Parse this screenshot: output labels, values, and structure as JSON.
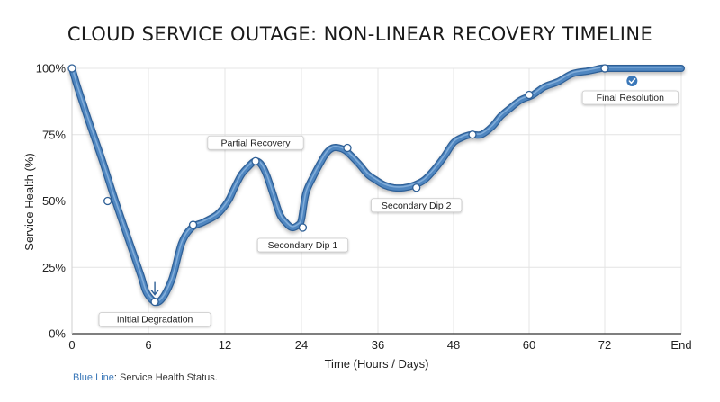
{
  "title": "CLOUD SERVICE OUTAGE: NON-LINEAR RECOVERY TIMELINE",
  "footnote": {
    "series_key": "Blue Line",
    "text": ": Service Health Status."
  },
  "colors": {
    "line": "#4f86c0",
    "line_dark": "#2e5f96",
    "grid": "#e4e4e4",
    "marker_fill": "#ffffff",
    "label_bg": "#ffffff",
    "accent": "#3b78b9"
  },
  "chart_data": {
    "type": "line",
    "xlabel": "Time (Hours / Days)",
    "ylabel": "Service Health (%)",
    "x_ticks": [
      "0",
      "6",
      "12",
      "24",
      "36",
      "48",
      "60",
      "72",
      "End"
    ],
    "y_ticks": [
      "0%",
      "25%",
      "50%",
      "75%",
      "100%"
    ],
    "ylim": [
      0,
      100
    ],
    "grid": true,
    "series": [
      {
        "x": [
          0,
          0.5,
          1.4,
          2.4,
          3.4,
          4.4,
          5.4,
          5.9,
          6.8,
          7.8,
          8.6,
          9.4,
          10.3,
          11.4,
          12.5,
          13.5,
          14.6,
          15.7,
          16.7,
          17.6,
          18.5,
          19.5,
          20.6,
          21.5,
          22.5,
          23.5,
          24.0,
          24.7,
          25.8,
          26.9,
          27.9,
          28.9,
          29.9,
          30.9,
          31.8,
          33.0,
          34.4,
          35.6,
          37.0,
          38.5,
          40.1,
          41.8,
          43.4,
          45.0,
          46.6,
          48.0,
          49.4,
          50.8,
          52.4,
          54.1,
          55.5,
          57.0,
          58.6,
          60.6,
          62.4,
          64.6,
          66.9,
          69.4,
          71.4,
          72.0,
          73.0,
          76.0,
          79.0,
          82.0,
          84.0
        ],
        "y": [
          100,
          92,
          79,
          65,
          50,
          36,
          22,
          15,
          12,
          20,
          34,
          40,
          42,
          45,
          50,
          55,
          60,
          63,
          65,
          64,
          60,
          53,
          45,
          42,
          40,
          41,
          43,
          53,
          59,
          64,
          68,
          70,
          70,
          69,
          67,
          64,
          60,
          58,
          56,
          55,
          55,
          56,
          58,
          62,
          67,
          72,
          74,
          75,
          75,
          78,
          82,
          85,
          88,
          90,
          93,
          95,
          98,
          99,
          100,
          100,
          100,
          100,
          100,
          100,
          100
        ]
      }
    ],
    "points": [
      {
        "x": 0,
        "y": 100
      },
      {
        "x": 2.8,
        "y": 50
      },
      {
        "x": 6.5,
        "y": 12
      },
      {
        "x": 9.5,
        "y": 41
      },
      {
        "x": 16.8,
        "y": 65
      },
      {
        "x": 24.2,
        "y": 40
      },
      {
        "x": 31.2,
        "y": 70
      },
      {
        "x": 42.1,
        "y": 55
      },
      {
        "x": 51.0,
        "y": 75
      },
      {
        "x": 60.0,
        "y": 90
      },
      {
        "x": 72.0,
        "y": 100
      }
    ],
    "annotations": [
      {
        "label": "Initial Degradation",
        "x": 6.5,
        "y": 12,
        "placement": "below",
        "marker": "down-arrow"
      },
      {
        "label": "Partial Recovery",
        "x": 16.8,
        "y": 65,
        "placement": "above"
      },
      {
        "label": "Secondary Dip 1",
        "x": 24.2,
        "y": 40,
        "placement": "below"
      },
      {
        "label": "Secondary Dip 2",
        "x": 42.1,
        "y": 55,
        "placement": "below"
      },
      {
        "label": "Final Resolution",
        "x": 76.0,
        "y": 100,
        "placement": "below",
        "marker": "check-badge"
      }
    ]
  }
}
